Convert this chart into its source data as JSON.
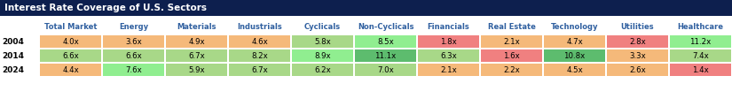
{
  "title": "Interest Rate Coverage of U.S. Sectors",
  "title_bg": "#0d1f4e",
  "title_color": "#ffffff",
  "columns": [
    "Total Market",
    "Energy",
    "Materials",
    "Industrials",
    "Cyclicals",
    "Non-Cyclicals",
    "Financials",
    "Real Estate",
    "Technology",
    "Utilities",
    "Healthcare"
  ],
  "rows": [
    "2004",
    "2014",
    "2024"
  ],
  "values": [
    [
      "4.0x",
      "3.6x",
      "4.9x",
      "4.6x",
      "5.8x",
      "8.5x",
      "1.8x",
      "2.1x",
      "4.7x",
      "2.8x",
      "11.2x"
    ],
    [
      "6.6x",
      "6.6x",
      "6.7x",
      "8.2x",
      "8.9x",
      "11.1x",
      "6.3x",
      "1.6x",
      "10.8x",
      "3.3x",
      "7.4x"
    ],
    [
      "4.4x",
      "7.6x",
      "5.9x",
      "6.7x",
      "6.2x",
      "7.0x",
      "2.1x",
      "2.2x",
      "4.5x",
      "2.6x",
      "1.4x"
    ]
  ],
  "cell_colors": [
    [
      "#f5b97a",
      "#f5b97a",
      "#f5b97a",
      "#f5b97a",
      "#a8d888",
      "#90ee90",
      "#f08080",
      "#f5b97a",
      "#f5b97a",
      "#f08080",
      "#90ee90"
    ],
    [
      "#a8d888",
      "#a8d888",
      "#a8d888",
      "#a8d888",
      "#90ee90",
      "#5dbc6e",
      "#a8d888",
      "#f08080",
      "#5dbc6e",
      "#f5b97a",
      "#a8d888"
    ],
    [
      "#f5b97a",
      "#90ee90",
      "#a8d888",
      "#a8d888",
      "#a8d888",
      "#a8d888",
      "#f5b97a",
      "#f5b97a",
      "#f5b97a",
      "#f5b97a",
      "#f08080"
    ]
  ],
  "col_label_color": "#3060a0",
  "bg_color": "#ffffff",
  "title_fontsize": 7.5,
  "header_fontsize": 6.0,
  "cell_fontsize": 6.2,
  "row_label_fontsize": 6.5
}
